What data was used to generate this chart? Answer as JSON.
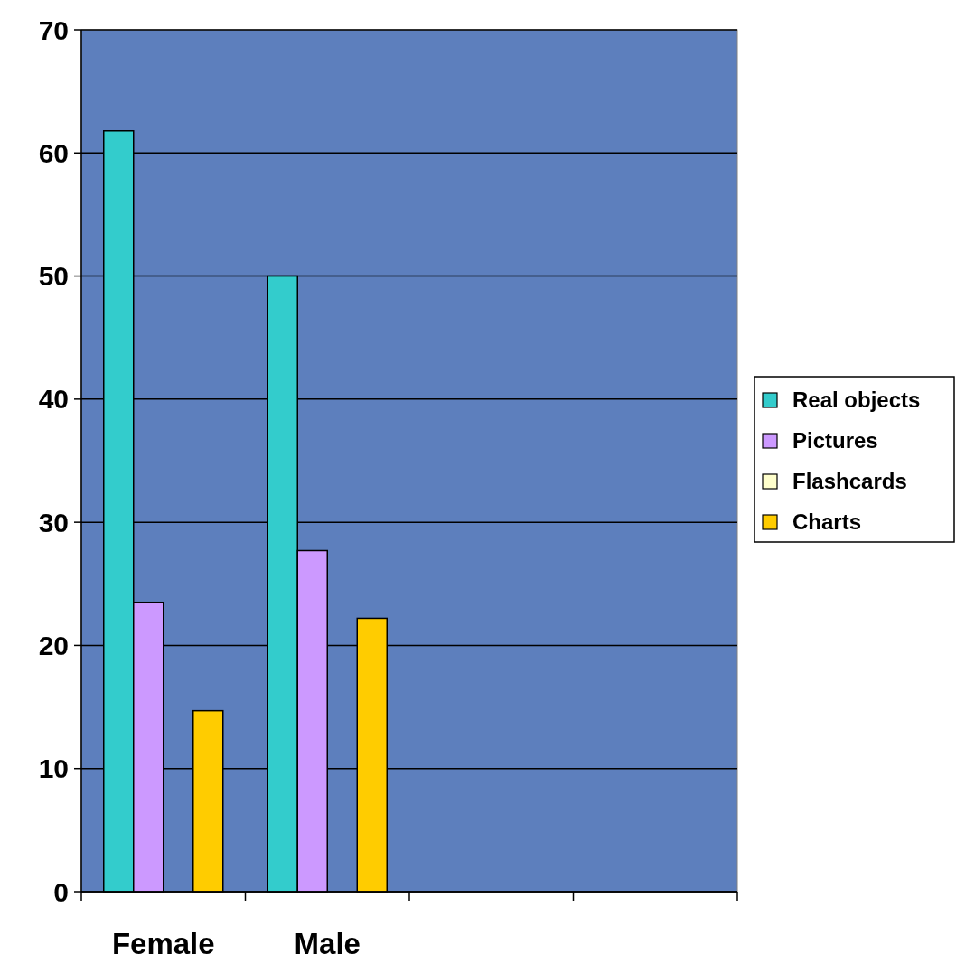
{
  "chart_data": {
    "type": "bar",
    "categories": [
      "Female",
      "Male",
      null,
      null
    ],
    "series": [
      {
        "name": "Real objects",
        "color": "#33cccc",
        "values": [
          61.8,
          50.0,
          null,
          null
        ]
      },
      {
        "name": "Pictures",
        "color": "#cc99ff",
        "values": [
          23.5,
          27.7,
          null,
          null
        ]
      },
      {
        "name": "Flashcards",
        "color": "#ffffcc",
        "values": [
          null,
          null,
          null,
          null
        ]
      },
      {
        "name": "Charts",
        "color": "#ffcc00",
        "values": [
          14.7,
          22.2,
          null,
          null
        ]
      }
    ],
    "ylim": [
      0,
      70
    ],
    "yticks": [
      0,
      10,
      20,
      30,
      40,
      50,
      60,
      70
    ],
    "grid": "y",
    "legend": "right"
  }
}
